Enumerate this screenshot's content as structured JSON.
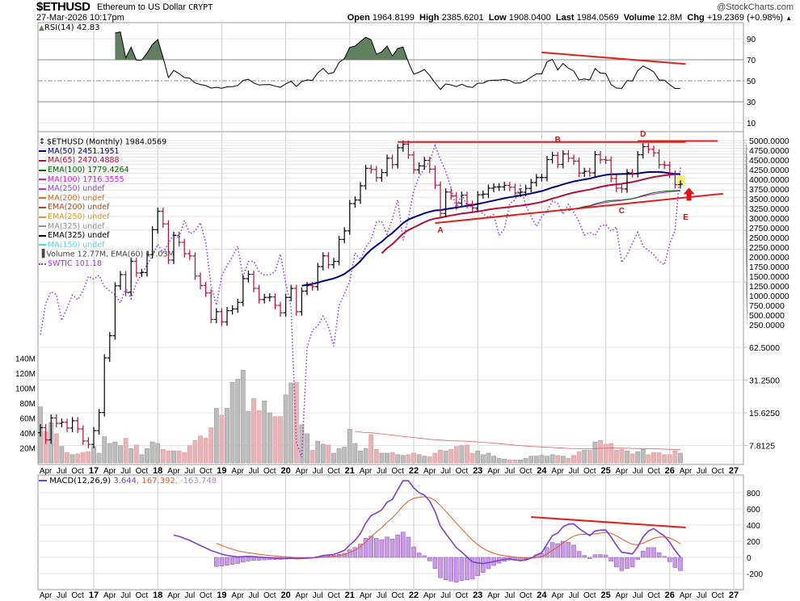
{
  "header": {
    "symbol": "$ETHUSD",
    "name": "Ethereum to US Dollar",
    "exchange": "CRYPT",
    "brand": "@StockCharts.com",
    "datetime": "27-Mar-2026 10:17pm",
    "open_label": "Open",
    "open": "1964.8199",
    "high_label": "High",
    "high": "2385.6201",
    "low_label": "Low",
    "low": "1908.0400",
    "last_label": "Last",
    "last": "1984.0569",
    "volume_label": "Volume",
    "volume": "12.8M",
    "chg_label": "Chg",
    "chg": "+19.2369 (+0.98%)",
    "chg_icon": "triangle-up"
  },
  "rsi_panel": {
    "legend": "RSI(14) 42.83",
    "axis_labels": [
      "90",
      "70",
      "50",
      "30",
      "10"
    ]
  },
  "price_panel": {
    "legend": [
      {
        "text": "$ETHUSD (Monthly) 1984.0569",
        "color": "#000000",
        "icon": "ohlc-bars"
      },
      {
        "text": "MA(50) 2451.1951",
        "color": "#000080"
      },
      {
        "text": "MA(65) 2470.4888",
        "color": "#b0103a"
      },
      {
        "text": "EMA(100) 1779.4264",
        "color": "#006400"
      },
      {
        "text": "MA(100) 1716.3555",
        "color": "#d020d0"
      },
      {
        "text": "MA(250) undef",
        "color": "#9040e0"
      },
      {
        "text": "MA(200) undef",
        "color": "#e07020"
      },
      {
        "text": "EMA(200) undef",
        "color": "#a05028"
      },
      {
        "text": "EMA(250) undef",
        "color": "#d0a030"
      },
      {
        "text": "MA(325) undef",
        "color": "#909090"
      },
      {
        "text": "EMA(325) undef",
        "color": "#000000"
      },
      {
        "text": "MA(150) undef",
        "color": "#40e0e0"
      },
      {
        "text": "Volume 12.77M, EMA(60) 17.03M",
        "color": "#444444",
        "icon": "volume-bars"
      },
      {
        "text": "$WTIC 101.18",
        "color": "#9040e0",
        "icon": "dotted-line"
      }
    ],
    "price_axis_labels": [
      "5000.0000",
      "4750.0000",
      "4500.0000",
      "4250.0000",
      "4000.0000",
      "3750.0000",
      "3500.0000",
      "3250.0000",
      "3000.0000",
      "2750.0000",
      "2500.0000",
      "2250.0000",
      "2000.0000",
      "1750.0000",
      "1500.0000",
      "1250.0000",
      "1000.0000",
      "750.0000",
      "500.0000",
      "250.0000",
      "62.5000",
      "31.2500",
      "15.6250",
      "7.8125"
    ],
    "volume_axis_labels": [
      "140M",
      "120M",
      "100M",
      "80M",
      "60M",
      "40M",
      "20M"
    ],
    "annotations": [
      "A",
      "B",
      "C",
      "D",
      "E"
    ]
  },
  "macd_panel": {
    "legend_name": "MACD(12,26,9)",
    "macd_value": "3.644",
    "signal_value": "167.392",
    "hist_value": "-163.748",
    "axis_labels": [
      "800",
      "600",
      "400",
      "200",
      "0",
      "-200"
    ]
  },
  "x_axis_labels": [
    "Apr",
    "Jul",
    "Oct",
    "17",
    "Apr",
    "Jul",
    "Oct",
    "18",
    "Apr",
    "Jul",
    "Oct",
    "19",
    "Apr",
    "Jul",
    "Oct",
    "20",
    "Apr",
    "Jul",
    "Oct",
    "21",
    "Apr",
    "Jul",
    "Oct",
    "22",
    "Apr",
    "Jul",
    "Oct",
    "23",
    "Apr",
    "Jul",
    "Oct",
    "24",
    "Apr",
    "Jul",
    "Oct",
    "25",
    "Apr",
    "Jul",
    "Oct",
    "26",
    "Apr",
    "Jul",
    "Oct",
    "27"
  ],
  "chart_data": {
    "type": "ohlc-bar",
    "interval": "Monthly",
    "start": "2016-03",
    "end": "2026-03",
    "y_scale": "log",
    "grid": true,
    "colors": {
      "up": "#000000",
      "down": "#b0103a",
      "ma50": "#000080",
      "ma65": "#b0103a",
      "ema100": "#006400",
      "ma100": "#d020d0",
      "wtic": "#9040e0",
      "vol_up": "#bdbdbd",
      "vol_down": "#e8b4b8",
      "rsi_fill": "#5f7f5f",
      "macd": "#7b3fd0",
      "signal": "#e05a20",
      "hist": "#c89be8",
      "trendline": "#e02020",
      "highlight": "#f5f07a"
    },
    "close": [
      11.4,
      8.8,
      14.0,
      12.5,
      12.8,
      11.3,
      13.2,
      11.1,
      8.6,
      8.0,
      10.7,
      15.7,
      50,
      80,
      230,
      292,
      201,
      388,
      302,
      305,
      446,
      756,
      1118,
      855,
      397,
      670,
      578,
      455,
      433,
      283,
      232,
      198,
      113,
      133,
      107,
      136,
      141,
      162,
      268,
      294,
      218,
      172,
      180,
      182,
      152,
      130,
      180,
      218,
      133,
      206,
      231,
      226,
      346,
      434,
      360,
      386,
      615,
      737,
      1314,
      1417,
      1918,
      2773,
      2707,
      2275,
      2536,
      3433,
      3000,
      4288,
      4631,
      3683,
      2688,
      2920,
      3282,
      2727,
      1942,
      1067,
      1679,
      1553,
      1328,
      1572,
      1295,
      1196,
      1585,
      1605,
      1822,
      1869,
      1874,
      1934,
      1856,
      1645,
      1671,
      1815,
      2052,
      2282,
      2283,
      3341,
      3647,
      3014,
      3762,
      3436,
      3232,
      2513,
      2602,
      2518,
      3705,
      3332,
      3300,
      2237,
      1822,
      1793,
      2528,
      2486,
      3698,
      4391,
      4145,
      3850,
      3000,
      2970,
      2450,
      1964.82,
      1984.06
    ],
    "volume_m": [
      75,
      42,
      54,
      39,
      22,
      14,
      11,
      12,
      14,
      15,
      22,
      13,
      35,
      26,
      28,
      23,
      33,
      19,
      24,
      11,
      19,
      28,
      26,
      18,
      16,
      16,
      16,
      14,
      23,
      30,
      36,
      33,
      47,
      73,
      64,
      73,
      108,
      112,
      124,
      69,
      86,
      70,
      83,
      67,
      62,
      62,
      91,
      107,
      108,
      51,
      39,
      17,
      29,
      25,
      24,
      13,
      19,
      21,
      45,
      26,
      16,
      19,
      38,
      18,
      13,
      13,
      14,
      11,
      10,
      11,
      13,
      11,
      9,
      8,
      13,
      17,
      16,
      18,
      22,
      23,
      24,
      13,
      16,
      11,
      13,
      9,
      6,
      5,
      4,
      4,
      4,
      6,
      9,
      9,
      10,
      9,
      11,
      10,
      9,
      6,
      10,
      15,
      17,
      17,
      28,
      30,
      25,
      26,
      17,
      18,
      16,
      12,
      15,
      18,
      11,
      14,
      14,
      11,
      11,
      16,
      13
    ],
    "wtic_close": [
      38.3,
      45.9,
      49.1,
      48.3,
      41.6,
      44.7,
      48.2,
      46.9,
      49.4,
      53.7,
      52.8,
      54.0,
      50.6,
      49.3,
      48.3,
      46.0,
      50.2,
      47.2,
      51.7,
      54.4,
      57.4,
      60.4,
      64.7,
      61.6,
      64.9,
      68.6,
      67.0,
      74.2,
      68.8,
      69.8,
      73.3,
      65.3,
      50.9,
      45.4,
      53.8,
      57.2,
      60.1,
      63.9,
      53.5,
      58.5,
      58.6,
      55.1,
      54.1,
      54.2,
      55.2,
      61.1,
      51.6,
      44.8,
      20.5,
      18.8,
      35.5,
      39.3,
      40.3,
      42.6,
      40.2,
      35.8,
      45.3,
      48.5,
      52.2,
      61.5,
      59.2,
      63.6,
      66.3,
      73.5,
      73.9,
      68.5,
      75.0,
      83.6,
      66.2,
      75.2,
      88.2,
      95.7,
      100.3,
      104.7,
      114.7,
      105.8,
      98.6,
      89.6,
      79.5,
      86.5,
      80.6,
      80.3,
      78.9,
      77.1,
      75.7,
      76.8,
      68.1,
      70.6,
      81.8,
      83.6,
      90.8,
      81.0,
      76.0,
      71.7,
      75.9,
      78.3,
      83.2,
      81.9,
      77.0,
      81.5,
      77.9,
      73.6,
      68.2,
      69.3,
      68.0,
      71.7,
      72.5,
      69.8,
      71.5,
      58.2,
      60.8,
      65.1,
      69.3,
      64.0,
      62.4,
      60.9,
      58.6,
      57.4,
      65.0,
      70.0,
      101.18
    ]
  }
}
